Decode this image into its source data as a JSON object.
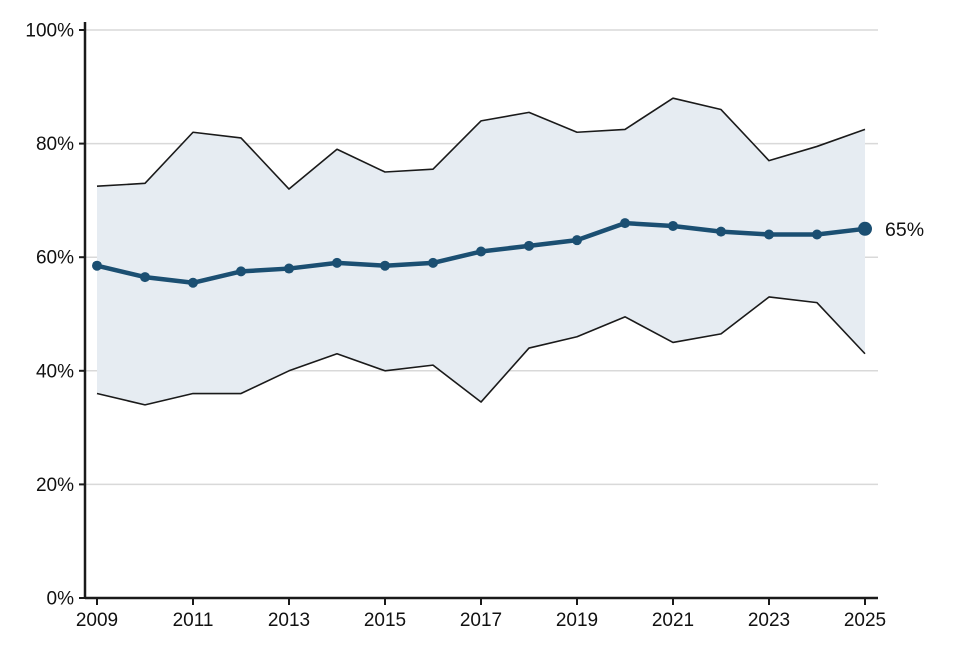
{
  "chart_data": {
    "type": "line",
    "title": "",
    "xlabel": "",
    "ylabel": "",
    "x": [
      2009,
      2010,
      2011,
      2012,
      2013,
      2014,
      2015,
      2016,
      2017,
      2018,
      2019,
      2020,
      2021,
      2022,
      2023,
      2024,
      2025
    ],
    "series": [
      {
        "name": "main",
        "values": [
          58.5,
          56.5,
          55.5,
          57.5,
          58,
          59,
          58.5,
          59,
          61,
          62,
          63,
          66,
          65.5,
          64.5,
          64,
          64,
          65
        ]
      },
      {
        "name": "upper_bound",
        "values": [
          72.5,
          73,
          82,
          81,
          72,
          79,
          75,
          75.5,
          84,
          85.5,
          82,
          82.5,
          88,
          86,
          77,
          79.5,
          82.5
        ]
      },
      {
        "name": "lower_bound",
        "values": [
          36,
          34,
          36,
          36,
          40,
          43,
          40,
          41,
          34.5,
          44,
          46,
          49.5,
          45,
          46.5,
          53,
          52,
          43
        ]
      }
    ],
    "ylim": [
      0,
      100
    ],
    "y_tick_step": 20,
    "y_tick_labels": [
      "0%",
      "20%",
      "40%",
      "60%",
      "80%",
      "100%"
    ],
    "x_tick_labels": [
      "2009",
      "2011",
      "2013",
      "2015",
      "2017",
      "2019",
      "2021",
      "2023",
      "2025"
    ],
    "annotation": {
      "text": "65%",
      "value": 65
    },
    "legend": "none",
    "grid": "horizontal",
    "colors": {
      "main_line": "#1b4f72",
      "band_fill": "#e6ecf2",
      "bound_line": "#1a1a1a",
      "grid_line": "#d9d9d9",
      "axis_line": "#1a1a1a",
      "text": "#111111"
    }
  }
}
